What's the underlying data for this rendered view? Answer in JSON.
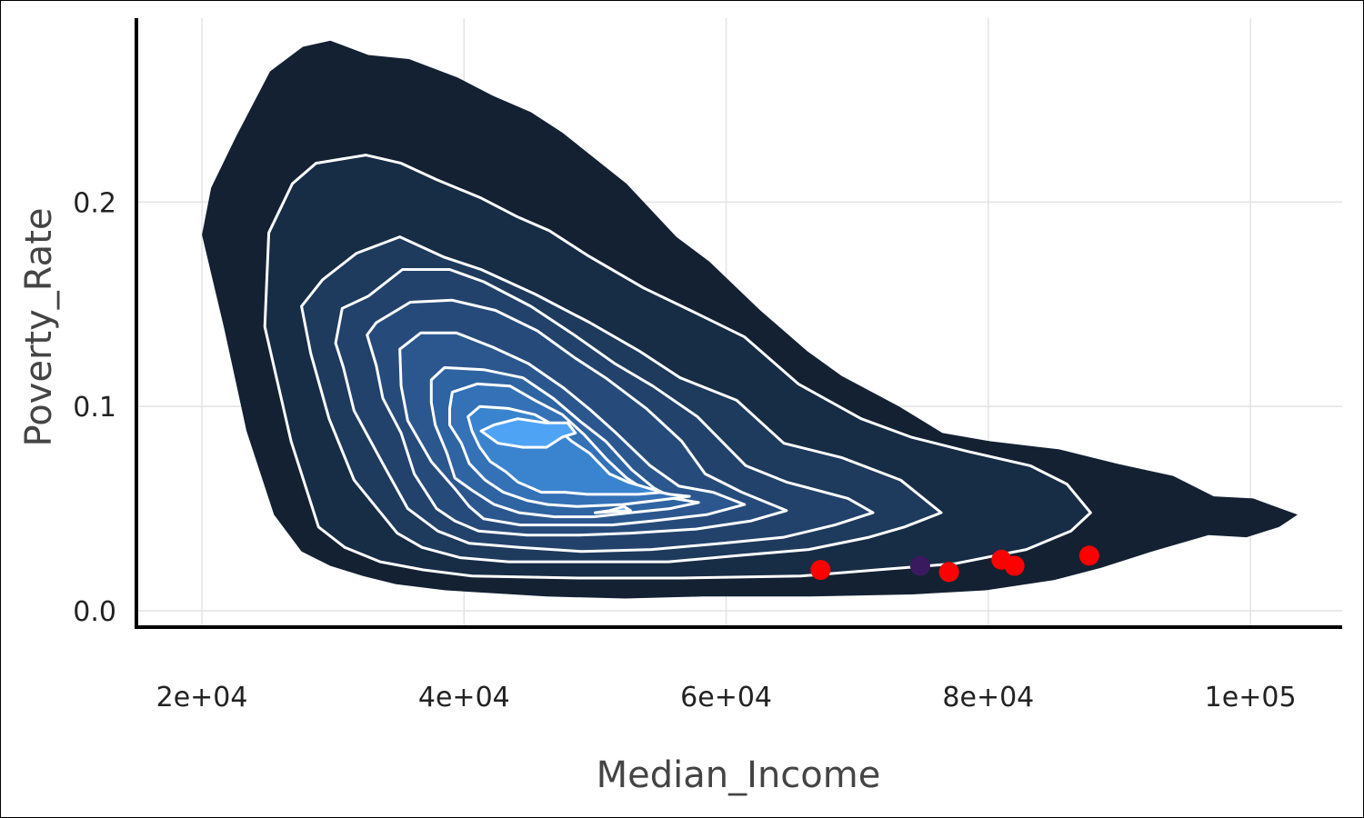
{
  "chart_data": {
    "type": "density_contour_with_points",
    "xlabel": "Median_Income",
    "ylabel": "Poverty_Rate",
    "xlim": [
      15000,
      107000
    ],
    "ylim": [
      -0.008,
      0.29
    ],
    "x_ticks": [
      {
        "value": 20000,
        "label": "2e+04"
      },
      {
        "value": 40000,
        "label": "4e+04"
      },
      {
        "value": 60000,
        "label": "6e+04"
      },
      {
        "value": 80000,
        "label": "8e+04"
      },
      {
        "value": 100000,
        "label": "1e+05"
      }
    ],
    "y_ticks": [
      {
        "value": 0.0,
        "label": "0.0"
      },
      {
        "value": 0.1,
        "label": "0.1"
      },
      {
        "value": 0.2,
        "label": "0.2"
      }
    ],
    "grid": true,
    "density_levels": [
      {
        "level": 1,
        "fill": "#132133",
        "outline": [
          [
            20000,
            0.184
          ],
          [
            20700,
            0.207
          ],
          [
            22600,
            0.232
          ],
          [
            25200,
            0.264
          ],
          [
            27700,
            0.276
          ],
          [
            29800,
            0.279
          ],
          [
            32700,
            0.272
          ],
          [
            35800,
            0.27
          ],
          [
            39500,
            0.261
          ],
          [
            42200,
            0.252
          ],
          [
            45100,
            0.244
          ],
          [
            47500,
            0.234
          ],
          [
            52400,
            0.209
          ],
          [
            56200,
            0.183
          ],
          [
            58700,
            0.171
          ],
          [
            62600,
            0.147
          ],
          [
            66200,
            0.127
          ],
          [
            68800,
            0.115
          ],
          [
            73200,
            0.1
          ],
          [
            76500,
            0.087
          ],
          [
            80100,
            0.083
          ],
          [
            85400,
            0.079
          ],
          [
            89800,
            0.072
          ],
          [
            94100,
            0.066
          ],
          [
            97200,
            0.056
          ],
          [
            100200,
            0.055
          ],
          [
            103600,
            0.047
          ],
          [
            102200,
            0.041
          ],
          [
            99700,
            0.036
          ],
          [
            96800,
            0.037
          ],
          [
            92500,
            0.029
          ],
          [
            88600,
            0.021
          ],
          [
            85000,
            0.015
          ],
          [
            79800,
            0.01
          ],
          [
            74200,
            0.008
          ],
          [
            66500,
            0.007
          ],
          [
            58200,
            0.007
          ],
          [
            52300,
            0.006
          ],
          [
            46300,
            0.007
          ],
          [
            38600,
            0.01
          ],
          [
            34800,
            0.013
          ],
          [
            32300,
            0.017
          ],
          [
            29800,
            0.022
          ],
          [
            27600,
            0.029
          ],
          [
            25500,
            0.047
          ],
          [
            23400,
            0.088
          ],
          [
            21700,
            0.138
          ],
          [
            20000,
            0.184
          ]
        ]
      },
      {
        "level": 2,
        "fill": "#172c45",
        "outline": [
          [
            25100,
            0.185
          ],
          [
            26900,
            0.209
          ],
          [
            28700,
            0.219
          ],
          [
            32500,
            0.223
          ],
          [
            35200,
            0.219
          ],
          [
            37900,
            0.211
          ],
          [
            41300,
            0.202
          ],
          [
            44000,
            0.193
          ],
          [
            46500,
            0.186
          ],
          [
            49400,
            0.174
          ],
          [
            53700,
            0.158
          ],
          [
            57600,
            0.146
          ],
          [
            61400,
            0.134
          ],
          [
            65500,
            0.111
          ],
          [
            70300,
            0.094
          ],
          [
            74100,
            0.085
          ],
          [
            78400,
            0.078
          ],
          [
            83200,
            0.071
          ],
          [
            86000,
            0.062
          ],
          [
            87800,
            0.048
          ],
          [
            86300,
            0.039
          ],
          [
            82900,
            0.03
          ],
          [
            77400,
            0.023
          ],
          [
            71500,
            0.02
          ],
          [
            65700,
            0.017
          ],
          [
            56600,
            0.016
          ],
          [
            48800,
            0.016
          ],
          [
            40600,
            0.017
          ],
          [
            36900,
            0.02
          ],
          [
            33600,
            0.024
          ],
          [
            30900,
            0.031
          ],
          [
            28900,
            0.041
          ],
          [
            26800,
            0.083
          ],
          [
            24800,
            0.139
          ],
          [
            25100,
            0.185
          ]
        ]
      },
      {
        "level": 3,
        "fill": "#1e3a5c",
        "outline": [
          [
            27600,
            0.149
          ],
          [
            29200,
            0.162
          ],
          [
            31800,
            0.175
          ],
          [
            35100,
            0.183
          ],
          [
            38500,
            0.173
          ],
          [
            41300,
            0.167
          ],
          [
            45400,
            0.155
          ],
          [
            49600,
            0.141
          ],
          [
            53400,
            0.127
          ],
          [
            56500,
            0.114
          ],
          [
            60800,
            0.103
          ],
          [
            64400,
            0.082
          ],
          [
            68800,
            0.075
          ],
          [
            73300,
            0.064
          ],
          [
            76400,
            0.048
          ],
          [
            73600,
            0.041
          ],
          [
            70900,
            0.036
          ],
          [
            66300,
            0.03
          ],
          [
            60900,
            0.027
          ],
          [
            55600,
            0.024
          ],
          [
            49200,
            0.024
          ],
          [
            43400,
            0.024
          ],
          [
            39700,
            0.026
          ],
          [
            36800,
            0.031
          ],
          [
            34900,
            0.038
          ],
          [
            31600,
            0.064
          ],
          [
            29700,
            0.094
          ],
          [
            28300,
            0.126
          ],
          [
            27600,
            0.149
          ]
        ]
      },
      {
        "level": 4,
        "fill": "#22426b",
        "outline": [
          [
            30200,
            0.131
          ],
          [
            30700,
            0.148
          ],
          [
            32700,
            0.154
          ],
          [
            35300,
            0.167
          ],
          [
            38900,
            0.167
          ],
          [
            41500,
            0.161
          ],
          [
            45100,
            0.149
          ],
          [
            48400,
            0.135
          ],
          [
            51500,
            0.121
          ],
          [
            54400,
            0.11
          ],
          [
            57800,
            0.095
          ],
          [
            61500,
            0.071
          ],
          [
            64600,
            0.063
          ],
          [
            69300,
            0.055
          ],
          [
            71200,
            0.048
          ],
          [
            68300,
            0.042
          ],
          [
            64400,
            0.036
          ],
          [
            59700,
            0.033
          ],
          [
            54300,
            0.03
          ],
          [
            49000,
            0.029
          ],
          [
            44200,
            0.031
          ],
          [
            40400,
            0.033
          ],
          [
            38000,
            0.039
          ],
          [
            35700,
            0.05
          ],
          [
            33800,
            0.072
          ],
          [
            31600,
            0.098
          ],
          [
            30800,
            0.119
          ],
          [
            30200,
            0.131
          ]
        ]
      },
      {
        "level": 5,
        "fill": "#264b7b",
        "outline": [
          [
            32600,
            0.135
          ],
          [
            33300,
            0.141
          ],
          [
            35900,
            0.151
          ],
          [
            39100,
            0.152
          ],
          [
            42400,
            0.147
          ],
          [
            45600,
            0.137
          ],
          [
            48400,
            0.124
          ],
          [
            50800,
            0.114
          ],
          [
            53900,
            0.099
          ],
          [
            56600,
            0.083
          ],
          [
            58400,
            0.067
          ],
          [
            61200,
            0.058
          ],
          [
            64600,
            0.049
          ],
          [
            61900,
            0.044
          ],
          [
            57700,
            0.04
          ],
          [
            52700,
            0.038
          ],
          [
            48800,
            0.037
          ],
          [
            44800,
            0.037
          ],
          [
            41100,
            0.039
          ],
          [
            39300,
            0.044
          ],
          [
            37900,
            0.05
          ],
          [
            36200,
            0.067
          ],
          [
            35200,
            0.087
          ],
          [
            33800,
            0.104
          ],
          [
            33300,
            0.12
          ],
          [
            32600,
            0.135
          ]
        ]
      },
      {
        "level": 6,
        "fill": "#2b578e",
        "outline": [
          [
            35100,
            0.128
          ],
          [
            36700,
            0.136
          ],
          [
            39400,
            0.136
          ],
          [
            42200,
            0.129
          ],
          [
            44900,
            0.121
          ],
          [
            47600,
            0.109
          ],
          [
            49700,
            0.098
          ],
          [
            51600,
            0.087
          ],
          [
            54200,
            0.071
          ],
          [
            56400,
            0.061
          ],
          [
            59000,
            0.058
          ],
          [
            61400,
            0.052
          ],
          [
            58500,
            0.047
          ],
          [
            54400,
            0.044
          ],
          [
            51300,
            0.042
          ],
          [
            47500,
            0.042
          ],
          [
            44300,
            0.042
          ],
          [
            41500,
            0.045
          ],
          [
            40400,
            0.051
          ],
          [
            39400,
            0.059
          ],
          [
            37500,
            0.073
          ],
          [
            35700,
            0.093
          ],
          [
            35200,
            0.11
          ],
          [
            35100,
            0.128
          ]
        ]
      },
      {
        "level": 7,
        "fill": "#2f64a2",
        "outline": [
          [
            37500,
            0.113
          ],
          [
            38500,
            0.119
          ],
          [
            41500,
            0.118
          ],
          [
            44500,
            0.114
          ],
          [
            46800,
            0.104
          ],
          [
            48800,
            0.093
          ],
          [
            50800,
            0.083
          ],
          [
            52800,
            0.069
          ],
          [
            54500,
            0.06
          ],
          [
            56000,
            0.055
          ],
          [
            57900,
            0.053
          ],
          [
            55700,
            0.05
          ],
          [
            52700,
            0.048
          ],
          [
            49900,
            0.046
          ],
          [
            46900,
            0.046
          ],
          [
            44200,
            0.048
          ],
          [
            42300,
            0.052
          ],
          [
            40600,
            0.059
          ],
          [
            39300,
            0.065
          ],
          [
            38700,
            0.077
          ],
          [
            37800,
            0.091
          ],
          [
            37500,
            0.102
          ],
          [
            37500,
            0.113
          ]
        ]
      },
      {
        "level": 8,
        "fill": "#3471b7",
        "outline": [
          [
            39100,
            0.107
          ],
          [
            41000,
            0.111
          ],
          [
            43500,
            0.11
          ],
          [
            45400,
            0.103
          ],
          [
            47500,
            0.096
          ],
          [
            49200,
            0.086
          ],
          [
            50900,
            0.074
          ],
          [
            52400,
            0.065
          ],
          [
            53600,
            0.06
          ],
          [
            55700,
            0.057
          ],
          [
            57200,
            0.056
          ],
          [
            54700,
            0.054
          ],
          [
            52100,
            0.052
          ],
          [
            48600,
            0.051
          ],
          [
            46400,
            0.052
          ],
          [
            44800,
            0.054
          ],
          [
            43000,
            0.058
          ],
          [
            41600,
            0.064
          ],
          [
            40400,
            0.072
          ],
          [
            39800,
            0.082
          ],
          [
            38900,
            0.091
          ],
          [
            38900,
            0.099
          ],
          [
            39100,
            0.107
          ]
        ]
      },
      {
        "level": 9,
        "fill": "#3a84cf",
        "outline": [
          [
            40300,
            0.095
          ],
          [
            41200,
            0.1
          ],
          [
            43400,
            0.099
          ],
          [
            45400,
            0.096
          ],
          [
            46800,
            0.091
          ],
          [
            48200,
            0.083
          ],
          [
            49600,
            0.077
          ],
          [
            51100,
            0.067
          ],
          [
            52500,
            0.063
          ],
          [
            55100,
            0.058
          ],
          [
            53300,
            0.057
          ],
          [
            51400,
            0.057
          ],
          [
            49400,
            0.057
          ],
          [
            47700,
            0.058
          ],
          [
            45900,
            0.058
          ],
          [
            44100,
            0.063
          ],
          [
            43200,
            0.068
          ],
          [
            42000,
            0.073
          ],
          [
            41200,
            0.08
          ],
          [
            40600,
            0.088
          ],
          [
            40300,
            0.095
          ]
        ]
      },
      {
        "level": 10,
        "fill": "#4fa3f5",
        "outline": [
          [
            42300,
            0.091
          ],
          [
            44100,
            0.094
          ],
          [
            46200,
            0.092
          ],
          [
            47900,
            0.092
          ],
          [
            48500,
            0.087
          ],
          [
            47500,
            0.085
          ],
          [
            46300,
            0.08
          ],
          [
            44500,
            0.08
          ],
          [
            42600,
            0.082
          ],
          [
            41300,
            0.088
          ],
          [
            42300,
            0.091
          ]
        ]
      },
      {
        "level": 10,
        "fill": "#4fa3f5",
        "outline": [
          [
            50000,
            0.048
          ],
          [
            52700,
            0.049
          ],
          [
            52200,
            0.051
          ],
          [
            51100,
            0.049
          ],
          [
            50000,
            0.048
          ]
        ]
      }
    ],
    "points": [
      {
        "x": 67200,
        "y": 0.02,
        "color": "#ff0000"
      },
      {
        "x": 77000,
        "y": 0.019,
        "color": "#ff0000"
      },
      {
        "x": 81000,
        "y": 0.025,
        "color": "#ff0000"
      },
      {
        "x": 82000,
        "y": 0.022,
        "color": "#ff0000"
      },
      {
        "x": 87700,
        "y": 0.027,
        "color": "#ff0000"
      },
      {
        "x": 74800,
        "y": 0.022,
        "color": "#3a1a5e"
      }
    ]
  }
}
